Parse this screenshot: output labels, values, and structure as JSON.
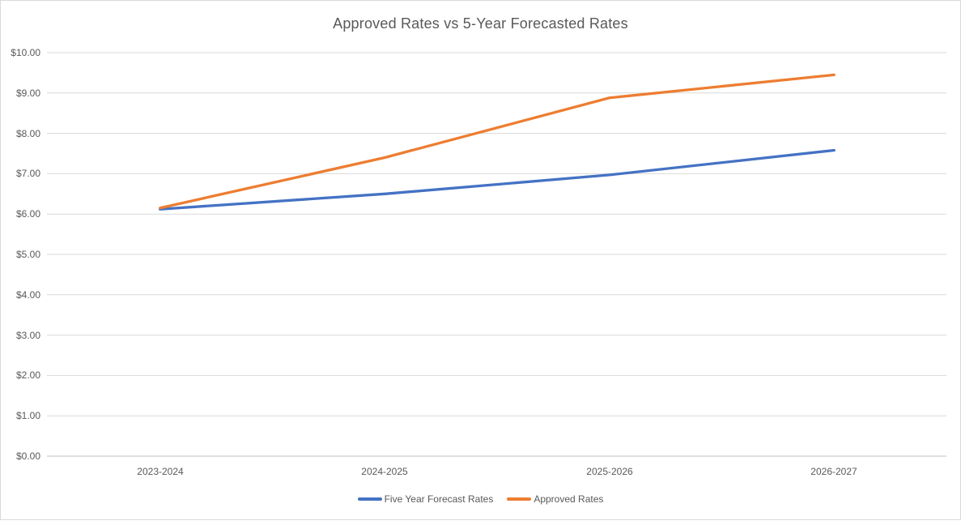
{
  "chart_data": {
    "type": "line",
    "title": "Approved Rates vs 5-Year Forecasted Rates",
    "categories": [
      "2023-2024",
      "2024-2025",
      "2025-2026",
      "2026-2027"
    ],
    "series": [
      {
        "name": "Five Year Forecast Rates",
        "color": "#4472C4",
        "values": [
          6.12,
          6.5,
          6.97,
          7.58
        ]
      },
      {
        "name": "Approved Rates",
        "color": "#ED7D31",
        "values": [
          6.15,
          7.4,
          8.88,
          9.45
        ]
      }
    ],
    "xlabel": "",
    "ylabel": "",
    "ylim": [
      0,
      10
    ],
    "y_tick_step": 1,
    "y_ticks_top_to_bottom": [
      "$10.00",
      "$9.00",
      "$8.00",
      "$7.00",
      "$6.00",
      "$5.00",
      "$4.00",
      "$3.00",
      "$2.00",
      "$1.00",
      "$0.00"
    ],
    "grid": true,
    "legend_position": "bottom"
  },
  "colors": {
    "gridline": "#D9D9D9",
    "axis_line": "#BFBFBF",
    "text": "#595959",
    "background": "#FFFFFF",
    "forecast_line": "#4472C4",
    "approved_line": "#ED7D31"
  }
}
